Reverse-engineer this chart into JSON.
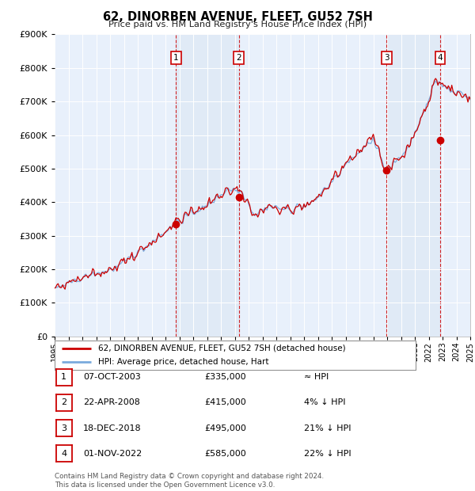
{
  "title": "62, DINORBEN AVENUE, FLEET, GU52 7SH",
  "subtitle": "Price paid vs. HM Land Registry's House Price Index (HPI)",
  "xlim": [
    1995.0,
    2025.0
  ],
  "ylim": [
    0,
    900000
  ],
  "yticks": [
    0,
    100000,
    200000,
    300000,
    400000,
    500000,
    600000,
    700000,
    800000,
    900000
  ],
  "ytick_labels": [
    "£0",
    "£100K",
    "£200K",
    "£300K",
    "£400K",
    "£500K",
    "£600K",
    "£700K",
    "£800K",
    "£900K"
  ],
  "sale_dates": [
    2003.77,
    2008.31,
    2018.96,
    2022.83
  ],
  "sale_prices": [
    335000,
    415000,
    495000,
    585000
  ],
  "sale_labels": [
    "1",
    "2",
    "3",
    "4"
  ],
  "vline_color": "#cc0000",
  "dot_color": "#cc0000",
  "hpi_line_color": "#7aaadd",
  "price_line_color": "#cc0000",
  "shade_color": "#dde8f5",
  "legend_entries": [
    "62, DINORBEN AVENUE, FLEET, GU52 7SH (detached house)",
    "HPI: Average price, detached house, Hart"
  ],
  "table_rows": [
    {
      "num": "1",
      "date": "07-OCT-2003",
      "price": "£335,000",
      "rel": "≈ HPI"
    },
    {
      "num": "2",
      "date": "22-APR-2008",
      "price": "£415,000",
      "rel": "4% ↓ HPI"
    },
    {
      "num": "3",
      "date": "18-DEC-2018",
      "price": "£495,000",
      "rel": "21% ↓ HPI"
    },
    {
      "num": "4",
      "date": "01-NOV-2022",
      "price": "£585,000",
      "rel": "22% ↓ HPI"
    }
  ],
  "footnote": "Contains HM Land Registry data © Crown copyright and database right 2024.\nThis data is licensed under the Open Government Licence v3.0.",
  "bg_color": "#ffffff",
  "plot_bg_color": "#e8f0fb",
  "grid_color": "#ffffff",
  "label_box_color": "#cc0000"
}
